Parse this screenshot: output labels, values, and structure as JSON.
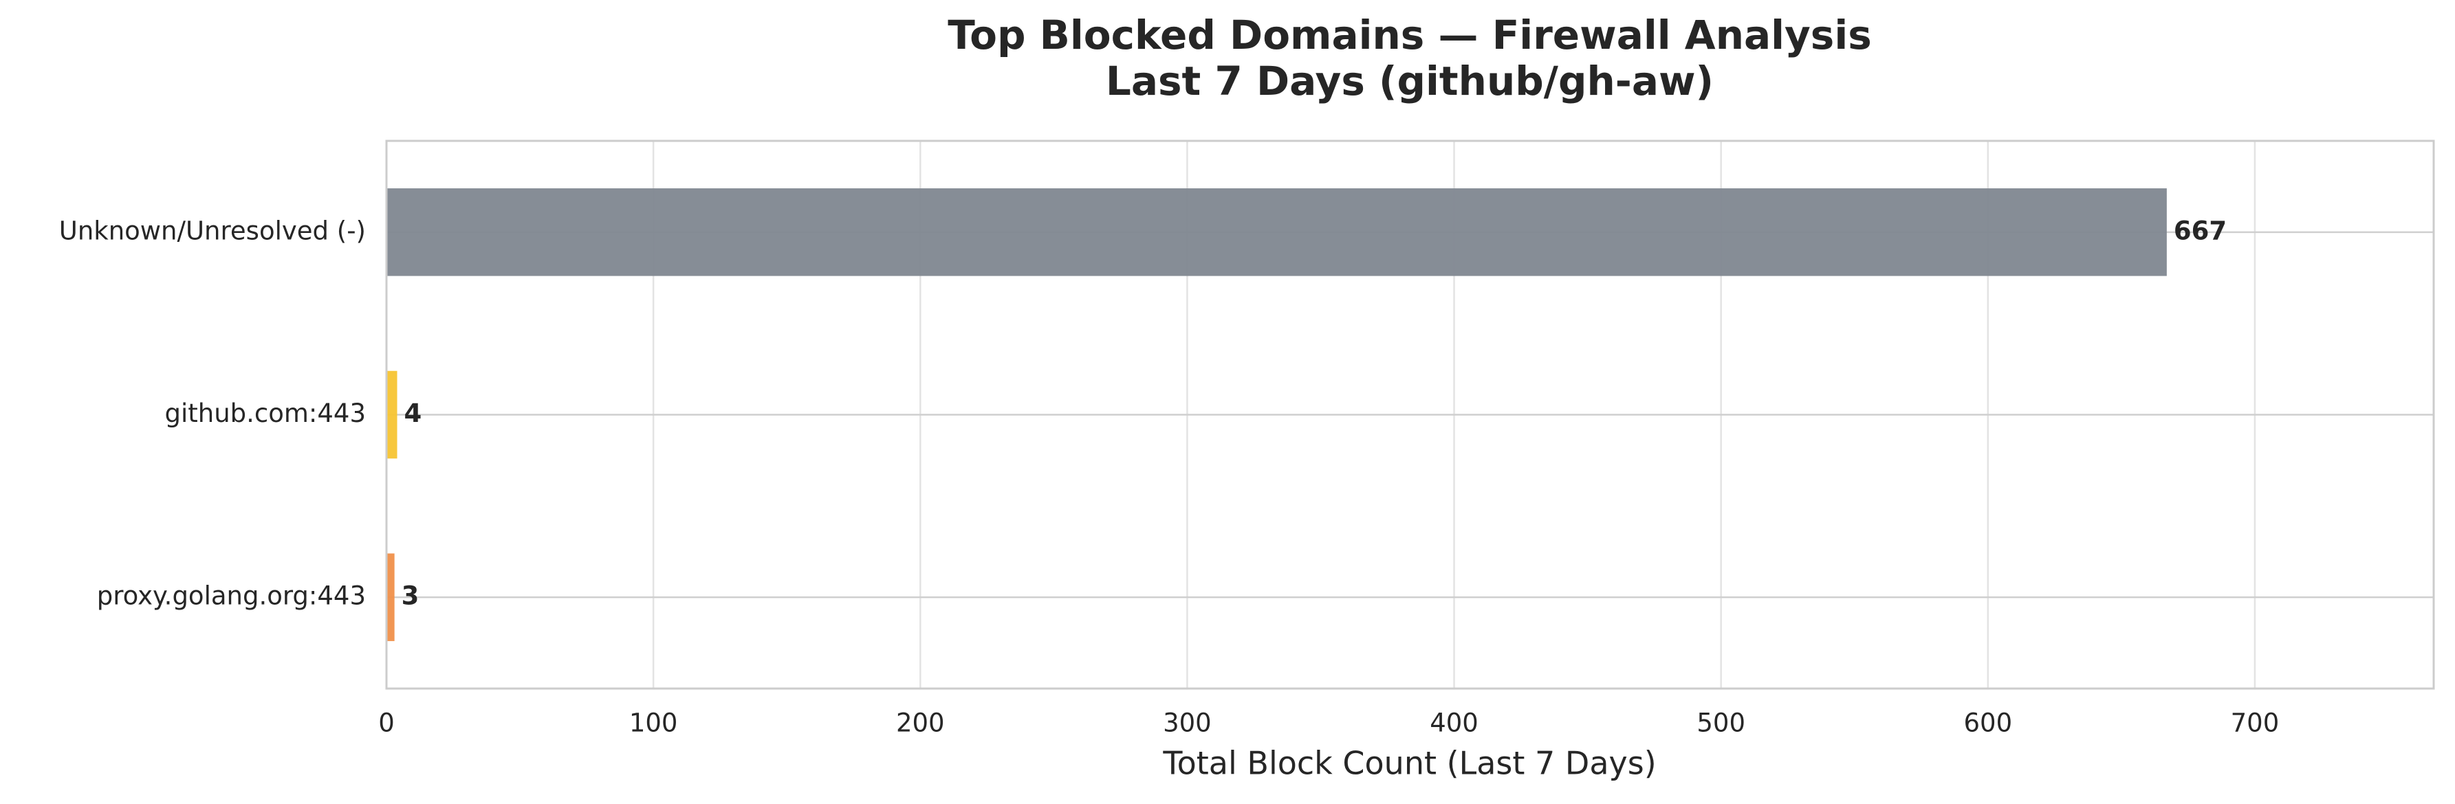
{
  "chart_data": {
    "type": "barh",
    "title": "Top Blocked Domains — Firewall Analysis",
    "subtitle": "Last 7 Days (github/gh-aw)",
    "x_label": "Total Block Count (Last 7 Days)",
    "categories": [
      "Unknown/Unresolved (-)",
      "github.com:443",
      "proxy.golang.org:443"
    ],
    "values": [
      667,
      4,
      3
    ],
    "colors": [
      "#7f8790",
      "#f7c431",
      "#f0904a"
    ],
    "xlim": [
      0,
      767
    ],
    "xticks": [
      0,
      100,
      200,
      300,
      400,
      500,
      600,
      700
    ],
    "grid": true
  }
}
